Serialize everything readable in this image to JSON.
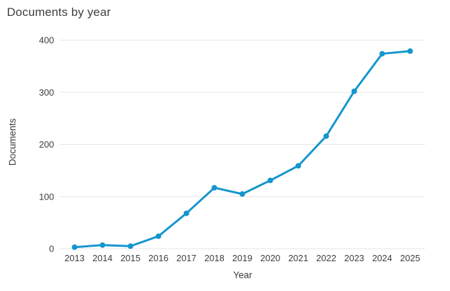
{
  "chart_data": {
    "type": "line",
    "title": "Documents by year",
    "xlabel": "Year",
    "ylabel": "Documents",
    "categories": [
      "2013",
      "2014",
      "2015",
      "2016",
      "2017",
      "2018",
      "2019",
      "2020",
      "2021",
      "2022",
      "2023",
      "2024",
      "2025"
    ],
    "series": [
      {
        "name": "Documents",
        "values": [
          3,
          7,
          5,
          24,
          68,
          117,
          105,
          131,
          159,
          216,
          302,
          374,
          379
        ]
      }
    ],
    "yticks": [
      0,
      100,
      200,
      300,
      400
    ],
    "ylim": [
      0,
      400
    ],
    "grid": "horizontal-only",
    "legend": "none",
    "marker": "circle",
    "line_color": "#1496cd",
    "grid_color": "#e5e5e5",
    "text_color": "#3c3c3c"
  }
}
